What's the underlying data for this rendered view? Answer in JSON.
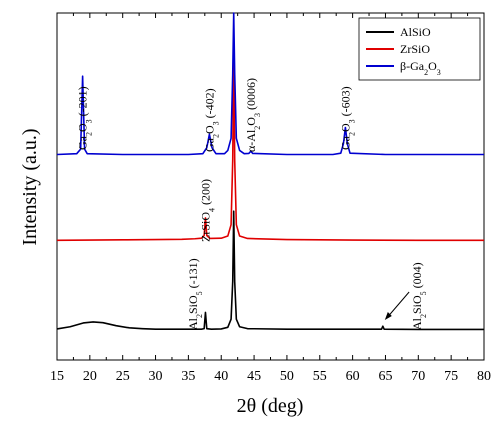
{
  "chart_data": {
    "type": "line",
    "xlabel": "2θ (deg)",
    "ylabel": "Intensity (a.u.)",
    "xlim": [
      15,
      80
    ],
    "xticks": [
      "15",
      "20",
      "25",
      "30",
      "35",
      "40",
      "45",
      "50",
      "55",
      "60",
      "65",
      "70",
      "75",
      "80"
    ],
    "y_ticks_shown": false,
    "legend_position": "top-right",
    "series": [
      {
        "name": "AlSiO",
        "color": "#000000",
        "baseline": 0.0,
        "points": [
          [
            15,
            0.4
          ],
          [
            17,
            1.2
          ],
          [
            19,
            2.6
          ],
          [
            20.5,
            3.0
          ],
          [
            22,
            2.7
          ],
          [
            24,
            1.6
          ],
          [
            26,
            0.8
          ],
          [
            28,
            0.5
          ],
          [
            30,
            0.3
          ],
          [
            33,
            0.3
          ],
          [
            35,
            0.3
          ],
          [
            37,
            0.3
          ],
          [
            37.4,
            0.5
          ],
          [
            37.6,
            6.5
          ],
          [
            37.8,
            0.5
          ],
          [
            38.5,
            0.3
          ],
          [
            40,
            0.4
          ],
          [
            41,
            1.0
          ],
          [
            41.5,
            4.0
          ],
          [
            41.75,
            18
          ],
          [
            41.9,
            44
          ],
          [
            42.05,
            18
          ],
          [
            42.3,
            4.0
          ],
          [
            42.8,
            1.2
          ],
          [
            44,
            0.5
          ],
          [
            50,
            0.3
          ],
          [
            60,
            0.3
          ],
          [
            64.4,
            0.3
          ],
          [
            64.6,
            1.4
          ],
          [
            64.8,
            0.3
          ],
          [
            70,
            0.2
          ],
          [
            80,
            0.2
          ]
        ]
      },
      {
        "name": "ZrSiO",
        "color": "#e00000",
        "baseline": 33.0,
        "points": [
          [
            15,
            0.2
          ],
          [
            20,
            0.3
          ],
          [
            25,
            0.4
          ],
          [
            30,
            0.5
          ],
          [
            34,
            0.6
          ],
          [
            36,
            0.8
          ],
          [
            37,
            1.0
          ],
          [
            37.4,
            2.0
          ],
          [
            37.6,
            8.5
          ],
          [
            37.8,
            2.0
          ],
          [
            38.3,
            0.9
          ],
          [
            40,
            1.0
          ],
          [
            41,
            1.8
          ],
          [
            41.5,
            6.0
          ],
          [
            41.75,
            30
          ],
          [
            41.9,
            70
          ],
          [
            42.05,
            30
          ],
          [
            42.3,
            6.0
          ],
          [
            42.8,
            1.8
          ],
          [
            44,
            0.9
          ],
          [
            50,
            0.5
          ],
          [
            60,
            0.3
          ],
          [
            70,
            0.2
          ],
          [
            80,
            0.2
          ]
        ]
      },
      {
        "name": "β-Ga2O3",
        "color": "#0000d0",
        "baseline": 65.0,
        "points": [
          [
            15,
            0
          ],
          [
            18,
            0.3
          ],
          [
            18.6,
            2
          ],
          [
            18.9,
            29
          ],
          [
            19.2,
            2
          ],
          [
            19.6,
            0.3
          ],
          [
            25,
            0
          ],
          [
            30,
            0
          ],
          [
            35,
            0
          ],
          [
            37.2,
            0.3
          ],
          [
            37.8,
            2.5
          ],
          [
            38.2,
            7.5
          ],
          [
            38.6,
            2.5
          ],
          [
            39.2,
            0.3
          ],
          [
            40.5,
            0.3
          ],
          [
            41,
            1.5
          ],
          [
            41.5,
            6
          ],
          [
            41.75,
            30
          ],
          [
            41.9,
            100
          ],
          [
            42.05,
            30
          ],
          [
            42.3,
            6
          ],
          [
            42.8,
            1.5
          ],
          [
            43.5,
            0.3
          ],
          [
            44.2,
            0.4
          ],
          [
            44.5,
            1.2
          ],
          [
            44.8,
            0.4
          ],
          [
            50,
            0
          ],
          [
            57,
            0
          ],
          [
            58.2,
            0.5
          ],
          [
            58.6,
            4
          ],
          [
            58.9,
            10
          ],
          [
            59.2,
            4
          ],
          [
            59.6,
            0.5
          ],
          [
            65,
            0
          ],
          [
            80,
            0
          ]
        ]
      }
    ],
    "annotations": [
      {
        "parts": [
          [
            "Ga",
            ""
          ],
          [
            "2",
            "sub"
          ],
          [
            "O",
            ""
          ],
          [
            "3",
            "sub"
          ],
          [
            " (-201)",
            ""
          ]
        ],
        "x": 18.9
      },
      {
        "parts": [
          [
            "Ga",
            ""
          ],
          [
            "2",
            "sub"
          ],
          [
            "O",
            ""
          ],
          [
            "3",
            "sub"
          ],
          [
            " (-402)",
            ""
          ]
        ],
        "x": 38.2
      },
      {
        "parts": [
          [
            "α-Al",
            ""
          ],
          [
            "2",
            "sub"
          ],
          [
            "O",
            ""
          ],
          [
            "3",
            "sub"
          ],
          [
            " (0006)",
            ""
          ]
        ],
        "x": 44.5
      },
      {
        "parts": [
          [
            "Ga",
            ""
          ],
          [
            "2",
            "sub"
          ],
          [
            "O",
            ""
          ],
          [
            "3",
            "sub"
          ],
          [
            " (-603)",
            ""
          ]
        ],
        "x": 58.9
      },
      {
        "parts": [
          [
            "ZrSiO",
            ""
          ],
          [
            "4",
            "sub"
          ],
          [
            " (200)",
            ""
          ]
        ],
        "x": 37.6
      },
      {
        "parts": [
          [
            "Al",
            ""
          ],
          [
            "2",
            "sub"
          ],
          [
            "SiO",
            ""
          ],
          [
            "5",
            "sub"
          ],
          [
            " (-131)",
            ""
          ]
        ],
        "x": 35.7
      },
      {
        "parts": [
          [
            "Al",
            ""
          ],
          [
            "2",
            "sub"
          ],
          [
            "SiO",
            ""
          ],
          [
            "5",
            "sub"
          ],
          [
            " (004)",
            ""
          ]
        ],
        "x": 69.8
      }
    ],
    "legend": [
      {
        "label": "AlSiO",
        "color": "#000000"
      },
      {
        "label": "ZrSiO",
        "color": "#e00000"
      },
      {
        "label_parts": [
          [
            "β-Ga",
            ""
          ],
          [
            "2",
            "sub"
          ],
          [
            "O",
            ""
          ],
          [
            "3",
            "sub"
          ]
        ],
        "color": "#0000d0"
      }
    ]
  }
}
